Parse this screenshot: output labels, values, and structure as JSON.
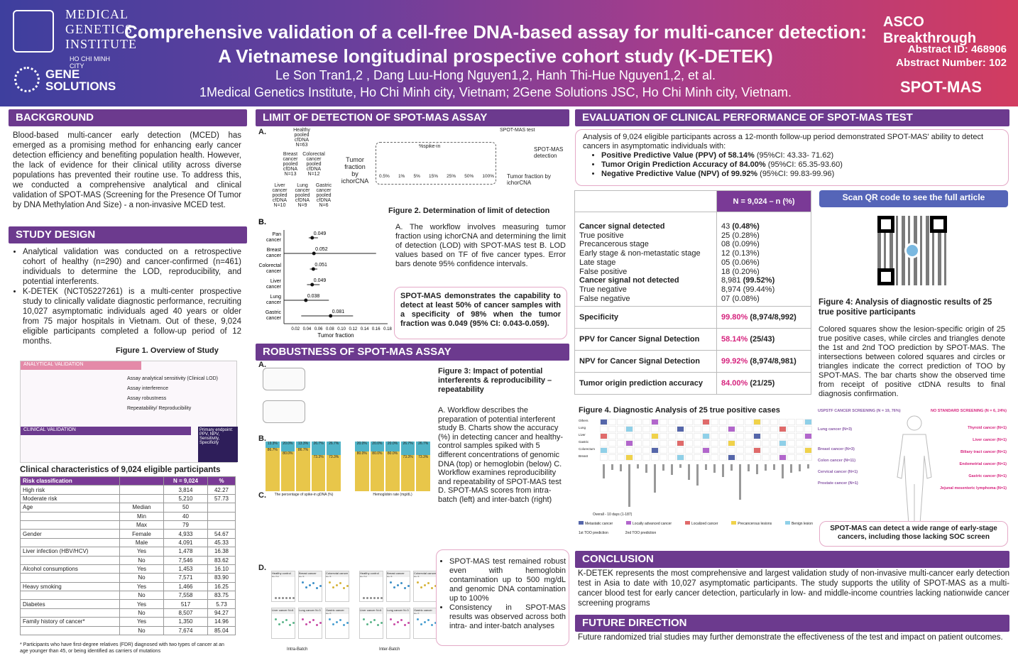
{
  "header": {
    "logo1_lines": [
      "MEDICAL",
      "GENETICS",
      "INSTITUTE"
    ],
    "logo1_city": "HO CHI MINH CITY",
    "logo2": "GENE SOLUTIONS",
    "title_line1": "Comprehensive validation of a cell-free DNA-based assay for multi-cancer detection:",
    "title_line2": "A Vietnamese longitudinal prospective cohort study (K-DETEK)",
    "authors": "Le Son Tran1,2 , Dang Luu-Hong Nguyen1,2, Hanh Thi-Hue Nguyen1,2, et al.",
    "affiliation": "1Medical Genetics Institute, Ho Chi Minh city, Vietnam; 2Gene Solutions JSC, Ho Chi Minh city, Vietnam.",
    "asco": "ASCO Breakthrough",
    "abstract_id": "Abstract  ID: 468906",
    "abstract_number": "Abstract Number: 102",
    "spotmas_logo": "SPOT-MAS"
  },
  "background": {
    "heading": "BACKGROUND",
    "text": "Blood-based multi-cancer early detection (MCED) has emerged as a promising method for enhancing early cancer detection efficiency and benefiting population health. However, the lack of evidence for their clinical utility across diverse populations has prevented their routine use. To address this, we conducted a comprehensive analytical and clinical validation of SPOT-MAS (Screening for the Presence Of Tumor by DNA Methylation And Size) - a non-invasive MCED test."
  },
  "study_design": {
    "heading": "STUDY DESIGN",
    "bullets": [
      "Analytical validation was conducted on a retrospective cohort of healthy (n=290) and cancer-confirmed (n=461) individuals to determine the LOD, reproducibility, and potential interferents.",
      "K-DETEK (NCT05227261) is a multi-center prospective study to clinically validate diagnostic performance, recruiting 10,027 asymptomatic individuals aged 40 years or older from 75 major hospitals in Vietnam. Out of these, 9,024 eligible participants completed a follow-up period of 12 months."
    ],
    "fig1_caption": "Figure 1. Overview of Study",
    "fig1_analytical": "ANALYTICAL VALIDATION",
    "fig1_clinical": "CLINICAL VALIDATION",
    "fig1_items": [
      "Assay analytical sensitivity (Clinical LOD)",
      "Assay interference",
      "Assay robustness",
      "Repeatability/ Reproducibility",
      "Primary endpoint: PPV, NPV, Sensitivity, Specificity"
    ]
  },
  "clinical": {
    "heading": "Clinical characteristics of 9,024 eligible participants",
    "headers": [
      "Risk classification",
      "",
      "N = 9,024",
      "%"
    ],
    "rows": [
      [
        "High risk",
        "",
        "3,814",
        "42.27"
      ],
      [
        "Moderate risk",
        "",
        "5,210",
        "57.73"
      ],
      [
        "Age",
        "Median",
        "50",
        ""
      ],
      [
        "",
        "Min",
        "40",
        ""
      ],
      [
        "",
        "Max",
        "79",
        ""
      ],
      [
        "Gender",
        "Female",
        "4,933",
        "54.67"
      ],
      [
        "",
        "Male",
        "4,091",
        "45.33"
      ],
      [
        "Liver infection (HBV/HCV)",
        "Yes",
        "1,478",
        "16.38"
      ],
      [
        "",
        "No",
        "7,546",
        "83.62"
      ],
      [
        "Alcohol consumptions",
        "Yes",
        "1,453",
        "16.10"
      ],
      [
        "",
        "No",
        "7,571",
        "83.90"
      ],
      [
        "Heavy smoking",
        "Yes",
        "1,466",
        "16.25"
      ],
      [
        "",
        "No",
        "7,558",
        "83.75"
      ],
      [
        "Diabetes",
        "Yes",
        "517",
        "5.73"
      ],
      [
        "",
        "No",
        "8,507",
        "94.27"
      ],
      [
        "Family history of cancer*",
        "Yes",
        "1,350",
        "14.96"
      ],
      [
        "",
        "No",
        "7,674",
        "85.04"
      ]
    ],
    "footnote": "* Participants who have first-degree relatives (FDR) diagnosed with two types of cancer at an age younger than 45, or being identified as carriers of mutations"
  },
  "lod": {
    "heading": "LIMIT OF DETECTION OF SPOT-MAS ASSAY",
    "fig2_caption": "Figure 2. Determination of limit of detection",
    "text": "A. The workflow involves measuring tumor fraction using ichorCNA and determining the limit of detection (LOD) with SPOT-MAS test B. LOD values based on TF of five cancer types. Error bars denote 95% confidence intervals.",
    "callout": "SPOT-MAS demonstrates the capability to detect at least 50% of cancer samples with a specificity of 98% when the tumor fraction was 0.049 (95% CI: 0.043-0.059).",
    "panelA_labels": [
      "Healthy pooled cfDNA N=63",
      "Breast cancer pooled cfDNA N=13",
      "Colorectal cancer pooled cfDNA N=12",
      "Liver cancer pooled cfDNA N=10",
      "Lung cancer pooled cfDNA N=9",
      "Gastric cancer pooled cfDNA N=6",
      "Tumor fraction by ichorCNA",
      "%spike-in",
      "SPOT-MAS test",
      "SPOT-MAS detection",
      "Tumor fraction by ichorCNA"
    ],
    "spike_levels": [
      "0.5%",
      "1%",
      "5%",
      "15%",
      "25%",
      "50%",
      "100%"
    ]
  },
  "chart_data": {
    "type": "scatter",
    "title": "",
    "xlabel": "Tumor fraction",
    "ylabel": "",
    "categories": [
      "Pan cancer",
      "Breast cancer",
      "Colorectal cancer",
      "Liver cancer",
      "Lung cancer",
      "Gastric cancer"
    ],
    "values": [
      0.049,
      0.052,
      0.051,
      0.049,
      0.038,
      0.081
    ],
    "ci": [
      [
        0.043,
        0.059
      ],
      [
        0.0,
        0.16
      ],
      [
        0.045,
        0.058
      ],
      [
        0.04,
        0.062
      ],
      [
        0.0,
        0.078
      ],
      [
        0.03,
        0.12
      ]
    ],
    "xticks": [
      "0.02",
      "0.04",
      "0.06",
      "0.08",
      "0.10",
      "0.12",
      "0.14",
      "0.16",
      "0.18"
    ],
    "xlim": [
      0.0,
      0.18
    ]
  },
  "robust": {
    "heading": "ROBUSTNESS OF SPOT-MAS ASSAY",
    "fig3_caption": "Figure 3: Impact of potential interferents & reproducibility – repeatability",
    "fig3_text": "A. Workflow describes the preparation of potential interferent study B. Charts show the accuracy (%) in detecting cancer and healthy-control samples spiked with 5 different concentrations of genomic DNA (top) or hemoglobin (below) C. Workflow examines reproducibility and repeatability of SPOT-MAS test D. SPOT-MAS scores from intra-batch (left) and inter-batch (right)",
    "bullets": [
      "SPOT-MAS test remained robust even with hemoglobin contamination up to 500 mg/dL and genomic DNA contamination up to 100%",
      "Consistency in SPOT-MAS results was observed across both intra- and inter-batch analyses"
    ],
    "panelB_left_pct": [
      "13.3%",
      "20.0%",
      "13.3%",
      "26.7%",
      "26.7%"
    ],
    "panelB_right_pct": [
      "20.0%",
      "20.0%",
      "20.0%",
      "26.7%",
      "26.7%"
    ],
    "panelB_left_low": [
      "86.7%",
      "80.0%",
      "86.7%",
      "73.3%",
      "73.3%"
    ],
    "panelB_right_low": [
      "80.0%",
      "80.0%",
      "80.0%",
      "73.3%",
      "73.3%"
    ],
    "panelB_xlabels": [
      "The percentage of spike-in gDNA (%)",
      "Hemoglobin rate (mg/dL)"
    ],
    "panelD_labels": [
      "Intra-Batch",
      "Inter-Batch"
    ],
    "panelD_groups": [
      "Healthy control N=24",
      "Breast cancer N=3",
      "Colorectal cancer N=3",
      "Liver cancer N=6",
      "Lung cancer N=3",
      "Gastric cancer N=2"
    ]
  },
  "eval": {
    "heading": "EVALUATION OF CLINICAL PERFORMANCE OF SPOT-MAS TEST",
    "intro": "Analysis of 9,024 eligible participants across a 12-month follow-up period demonstrated SPOT-MAS' ability to detect cancers in asymptomatic individuals with:",
    "bullets": [
      {
        "b": "Positive Predictive Value (PPV) of 58.14%",
        "n": " (95%CI: 43.33- 71.62)"
      },
      {
        "b": "Tumor Origin Prediction Accuracy of 84.00%",
        "n": " (95%CI: 65.35-93.60)"
      },
      {
        "b": "Negative Predictive Value (NPV) of 99.92%",
        "n": " (95%CI: 99.83-99.96)"
      }
    ],
    "table_header": "N = 9,024 – n (%)",
    "counts": [
      [
        "Cancer signal detected",
        "43",
        "(0.48%)",
        true
      ],
      [
        "True positive",
        "25",
        "(0.28%)",
        false
      ],
      [
        "Precancerous stage",
        "08",
        "(0.09%)",
        false
      ],
      [
        "Early stage & non-metastatic stage",
        "12",
        "(0.13%)",
        false
      ],
      [
        "Late stage",
        "05",
        "(0.06%)",
        false
      ],
      [
        "False positive",
        "18",
        "(0.20%)",
        false
      ],
      [
        "Cancer signal not detected",
        "8,981",
        "(99.52%)",
        true
      ],
      [
        "True negative",
        "8,974",
        "(99.44%)",
        false
      ],
      [
        "False negative",
        "07",
        "(0.08%)",
        false
      ]
    ],
    "metrics": [
      [
        "Specificity",
        "99.80%",
        "(8,974/8,992)"
      ],
      [
        "PPV for Cancer Signal Detection",
        "58.14%",
        "(25/43)"
      ],
      [
        "NPV for Cancer Signal Detection",
        "99.92%",
        "(8,974/8,981)"
      ],
      [
        "Tumor origin prediction accuracy",
        "84.00%",
        "(21/25)"
      ]
    ],
    "qr_banner": "Scan QR code to see the full article",
    "fig4_title": "Figure 4: Analysis of diagnostic results of 25 true positive participants",
    "fig4_text": "Colored squares show the lesion-specific origin of 25 true positive cases, while circles and triangles denote the 1st and 2nd TOO prediction by SPOT-MAS. The intersections between colored squares and circles or triangles indicate the correct prediction of TOO by SPOT-MAS. The bar charts show the observed time from receipt of positive ctDNA results to final diagnosis confirmation.",
    "fig4_caption": "Figure 4. Diagnostic Analysis of 25 true positive cases",
    "fig4_rows": [
      "Others",
      "Lung",
      "Liver",
      "Gastric",
      "Colorectum",
      "Breast"
    ],
    "fig4_legend": [
      "Metastatic cancer",
      "Locally advanced cancer",
      "Localized cancer",
      "Precancerous lesions",
      "Benign lesion"
    ],
    "fig4_tooleg": [
      "1st TOO prediction",
      "2nd TOO prediction"
    ],
    "fig4_overall": "Overall - 10 days (1-187)",
    "body_left_head": "USPSTF CANCER SCREENING (N = 19, 76%)",
    "body_right_head": "NO STANDARD SCREENING (N = 6, 24%)",
    "body_left": [
      "Lung cancer (N=3)",
      "Breast cancer (N=3)",
      "Colon cancer (N=11)",
      "Cervical cancer (N=1)",
      "Prostate cancer (N=1)"
    ],
    "body_right": [
      "Thyroid cancer (N=1)",
      "Liver cancer (N=1)",
      "Biliary tract cancer (N=1)",
      "Endometrial cancer (N=1)",
      "Gastric cancer (N=1)",
      "Jejunal mesenteric lymphoma (N=1)"
    ],
    "body_callout": "SPOT-MAS can detect a wide range of early-stage cancers, including those lacking SOC screen"
  },
  "conclusion": {
    "heading": "CONCLUSION",
    "text": "K-DETEK represents the most comprehensive and largest validation study of non-invasive multi-cancer early detection test in Asia to date with 10,027 asymptomatic participants. The study supports the utility of SPOT-MAS as a multi-cancer blood test for early cancer detection, particularly in low- and middle-income countries lacking nationwide cancer screening programs"
  },
  "future": {
    "heading": "FUTURE DIRECTION",
    "text": "Future randomized trial studies may further demonstrate the effectiveness of the test and impact on patient outcomes."
  },
  "colors": {
    "header_start": "#3e3f9e",
    "header_end": "#d23c60",
    "section": "#6c3a8e",
    "highlight": "#d6247e"
  }
}
